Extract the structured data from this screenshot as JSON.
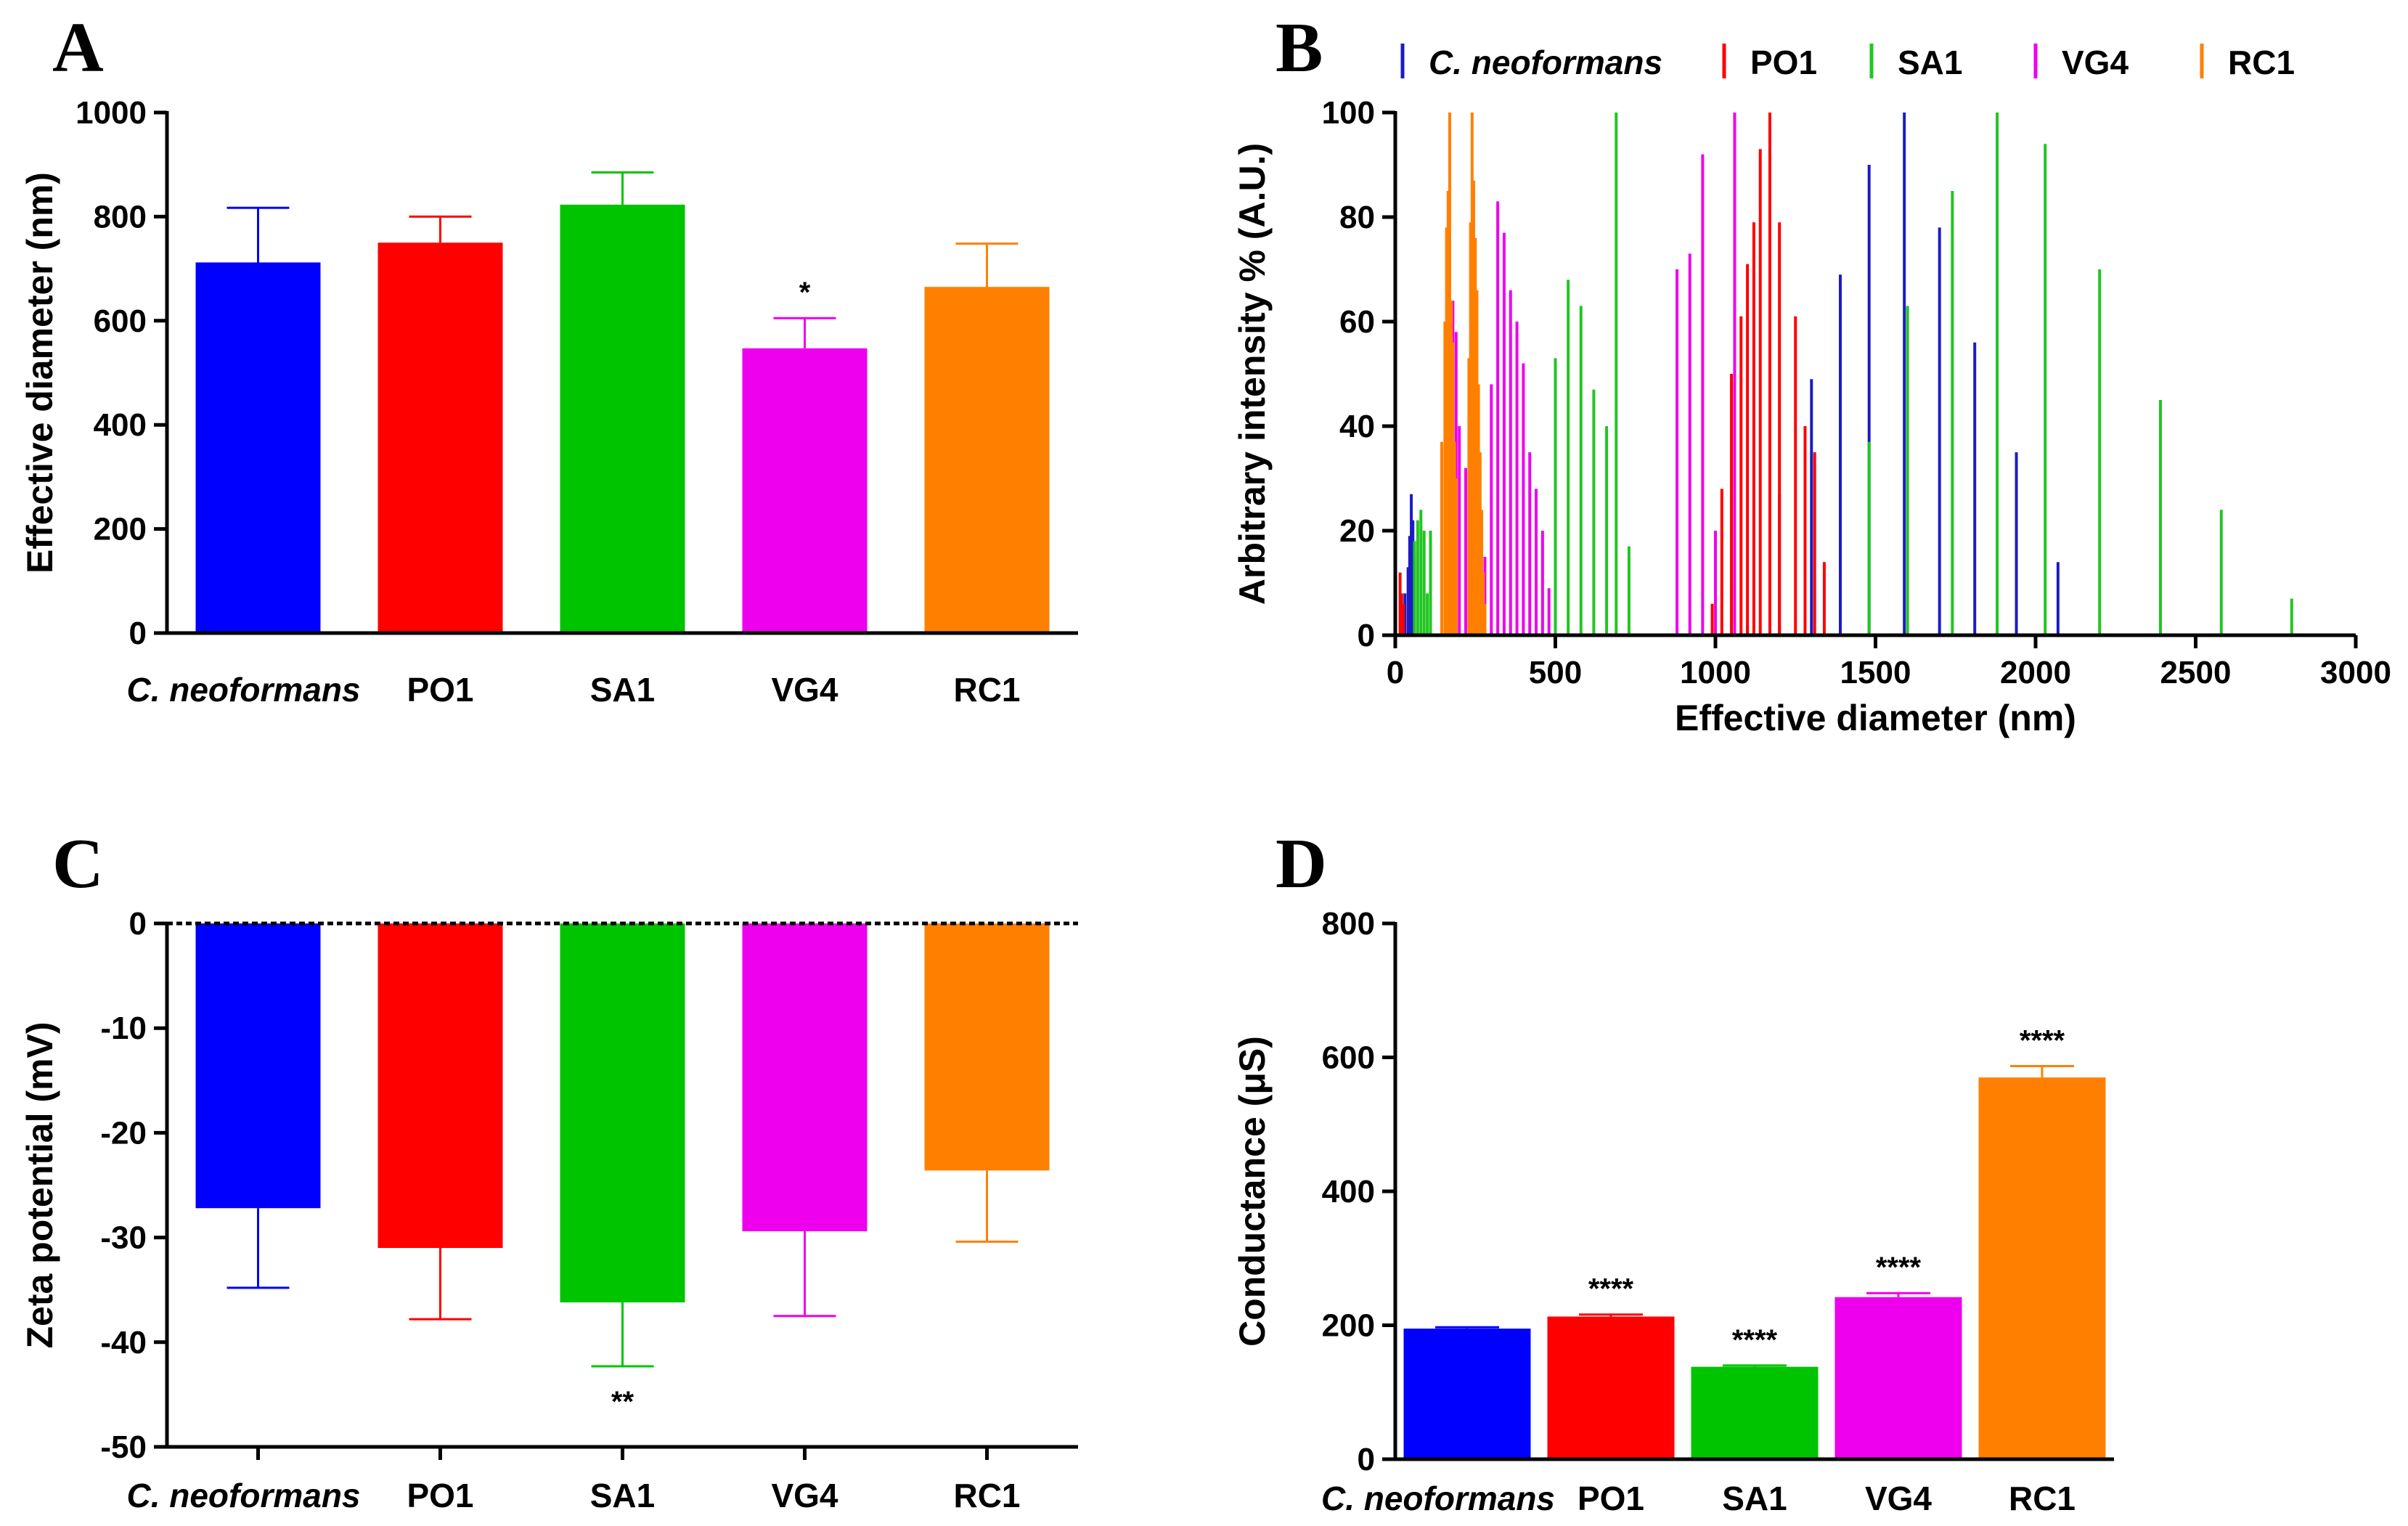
{
  "colors": {
    "c_neoformans": "#0000ff",
    "po1": "#ff0000",
    "sa1": "#00c400",
    "vg4": "#ee00ee",
    "rc1": "#ff8000",
    "b_c_neoformans": "#1c1cc4",
    "b_sa1": "#22c522"
  },
  "chart_data": [
    {
      "panel": "A",
      "type": "bar",
      "categories": [
        "C. neoformans",
        "PO1",
        "SA1",
        "VG4",
        "RC1"
      ],
      "values": [
        712,
        750,
        823,
        547,
        665
      ],
      "errors": [
        105,
        50,
        62,
        58,
        83
      ],
      "annotations": [
        "",
        "",
        "",
        "*",
        ""
      ],
      "ylabel": "Effective diameter (nm)",
      "ylim": [
        0,
        1000
      ],
      "yticks": [
        0,
        200,
        400,
        600,
        800,
        1000
      ]
    },
    {
      "panel": "B",
      "type": "bar",
      "xlabel": "Effective diameter (nm)",
      "ylabel": "Arbitrary intensity % (A.U.)",
      "xlim": [
        0,
        3000
      ],
      "ylim": [
        0,
        100
      ],
      "xticks": [
        0,
        500,
        1000,
        1500,
        2000,
        2500,
        3000
      ],
      "yticks": [
        0,
        20,
        40,
        60,
        80,
        100
      ],
      "legend": [
        "C. neoformans",
        "PO1",
        "SA1",
        "VG4",
        "RC1"
      ],
      "series": [
        {
          "name": "C. neoformans",
          "x": [
            30,
            40,
            45,
            50,
            55,
            60,
            1000,
            1100,
            1200,
            1300,
            1390,
            1480,
            1590,
            1700,
            1810,
            1940,
            2070
          ],
          "values": [
            8,
            13,
            19,
            27,
            22,
            15,
            2,
            2,
            27,
            49,
            69,
            90,
            100,
            78,
            56,
            35,
            14
          ]
        },
        {
          "name": "PO1",
          "x": [
            15,
            20,
            25,
            990,
            1020,
            1050,
            1080,
            1100,
            1120,
            1140,
            1170,
            1200,
            1250,
            1280,
            1310,
            1340
          ],
          "values": [
            12,
            8,
            6,
            6,
            28,
            50,
            61,
            71,
            79,
            93,
            100,
            79,
            61,
            40,
            35,
            14
          ]
        },
        {
          "name": "SA1",
          "x": [
            60,
            70,
            80,
            90,
            100,
            110,
            500,
            540,
            580,
            620,
            660,
            690,
            730,
            1480,
            1600,
            1740,
            1880,
            2030,
            2200,
            2390,
            2580,
            2800
          ],
          "values": [
            18,
            22,
            24,
            20,
            8,
            20,
            53,
            68,
            63,
            47,
            40,
            100,
            17,
            37,
            63,
            85,
            100,
            94,
            70,
            45,
            24,
            7
          ]
        },
        {
          "name": "VG4",
          "x": [
            170,
            180,
            190,
            200,
            220,
            240,
            260,
            280,
            300,
            320,
            340,
            360,
            380,
            400,
            420,
            440,
            460,
            480,
            880,
            920,
            960,
            1000,
            1060
          ],
          "values": [
            44,
            64,
            58,
            40,
            32,
            26,
            20,
            15,
            48,
            83,
            77,
            66,
            60,
            52,
            35,
            28,
            20,
            9,
            70,
            73,
            92,
            20,
            100
          ]
        },
        {
          "name": "RC1",
          "x": [
            145,
            155,
            160,
            165,
            170,
            175,
            180,
            185,
            190,
            230,
            235,
            240,
            245,
            250,
            255,
            260,
            265,
            270,
            275,
            280
          ],
          "values": [
            37,
            60,
            78,
            85,
            100,
            64,
            56,
            37,
            30,
            53,
            79,
            100,
            87,
            76,
            66,
            48,
            35,
            24,
            12,
            6
          ]
        }
      ]
    },
    {
      "panel": "C",
      "type": "bar",
      "categories": [
        "C. neoformans",
        "PO1",
        "SA1",
        "VG4",
        "RC1"
      ],
      "values": [
        -27.2,
        -31.0,
        -36.2,
        -29.4,
        -23.6
      ],
      "errors": [
        7.6,
        6.8,
        6.1,
        8.1,
        6.8
      ],
      "annotations": [
        "",
        "",
        "**",
        "",
        ""
      ],
      "ylabel": "Zeta potential (mV)",
      "ylim": [
        -50,
        0
      ],
      "yticks": [
        0,
        -10,
        -20,
        -30,
        -40,
        -50
      ]
    },
    {
      "panel": "D",
      "type": "bar",
      "categories": [
        "C. neoformans",
        "PO1",
        "SA1",
        "VG4",
        "RC1"
      ],
      "values": [
        195,
        213,
        138,
        242,
        570
      ],
      "errors": [
        2,
        3,
        2,
        6,
        17
      ],
      "annotations": [
        "",
        "****",
        "****",
        "****",
        "****"
      ],
      "ylabel": "Conductance (μS)",
      "ylim": [
        0,
        800
      ],
      "yticks": [
        0,
        200,
        400,
        600,
        800
      ]
    }
  ]
}
